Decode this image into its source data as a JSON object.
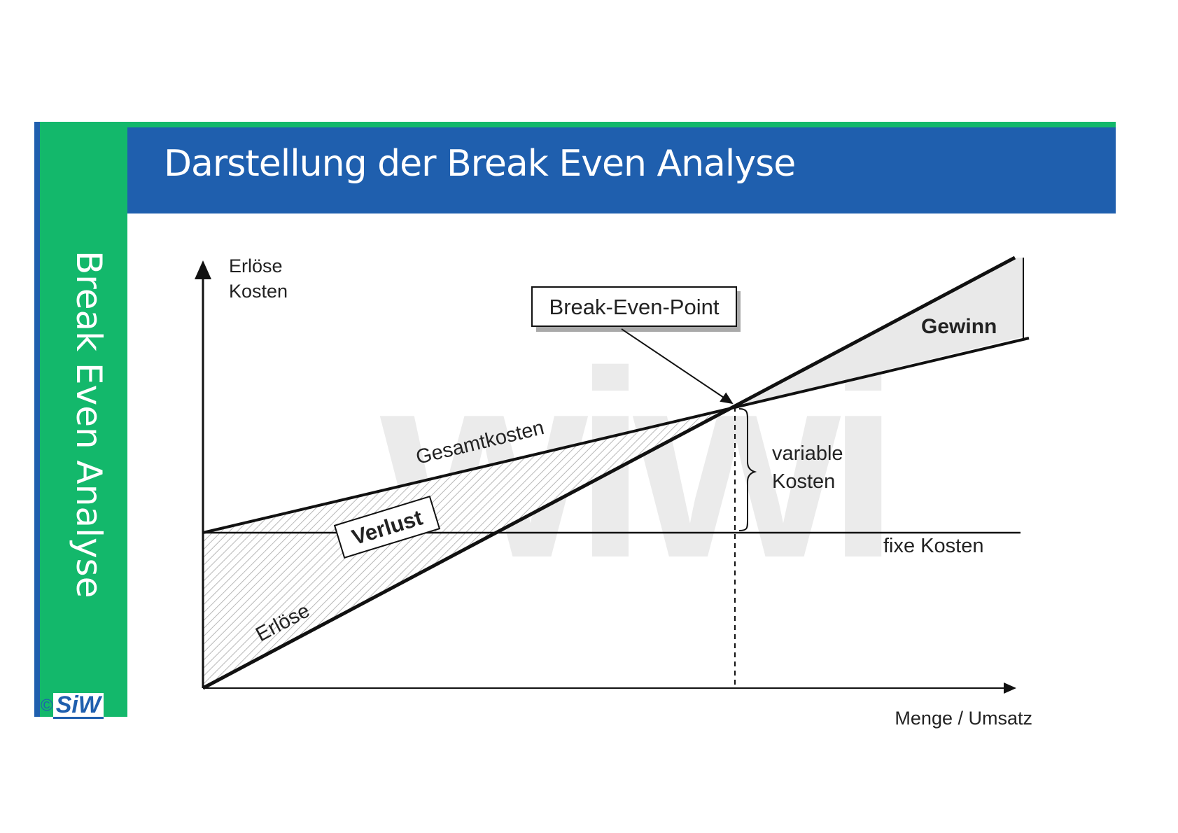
{
  "slide": {
    "title": "Darstellung der Break Even Analyse",
    "side_title": "Break Even Analyse",
    "logo_copyright": "©",
    "logo_text": "SiW",
    "colors": {
      "header_blue": "#1f5fae",
      "side_green": "#13b86b"
    }
  },
  "diagram": {
    "y_axis_label_line1": "Erlöse",
    "y_axis_label_line2": "Kosten",
    "x_axis_label": "Menge / Umsatz",
    "break_even_label": "Break-Even-Point",
    "gewinn_label": "Gewinn",
    "gesamtkosten_label": "Gesamtkosten",
    "verlust_label": "Verlust",
    "erloese_label": "Erlöse",
    "variable_kosten_line1": "variable",
    "variable_kosten_line2": "Kosten",
    "fixe_kosten_label": "fixe Kosten",
    "watermark": "wiwi"
  }
}
